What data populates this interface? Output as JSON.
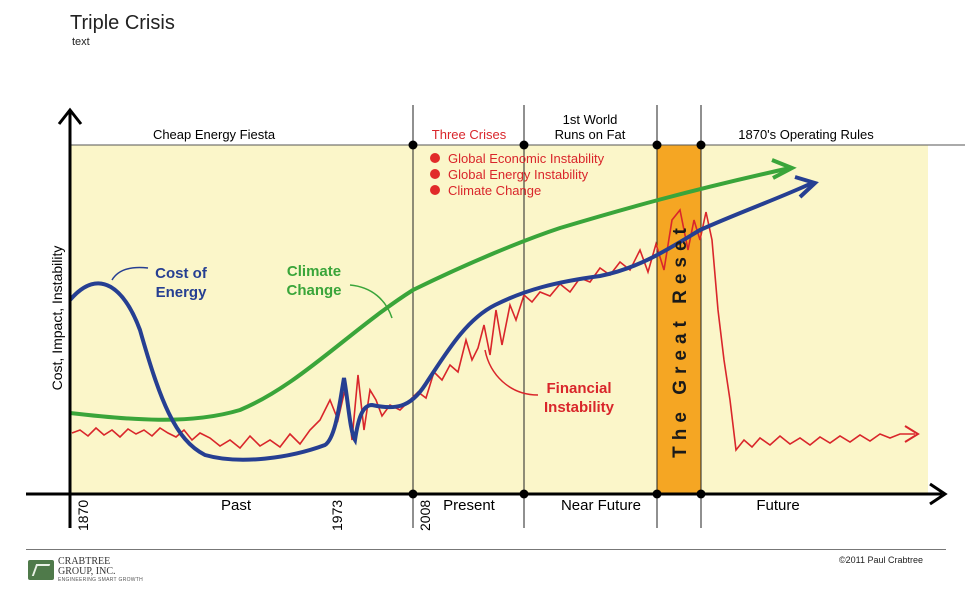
{
  "title": "Triple Crisis",
  "subtitle": "text",
  "colors": {
    "background_band": "#fbf6c9",
    "reset_band": "#f5a623",
    "cost_of_energy": "#263f92",
    "climate_change": "#3aa53a",
    "financial_instability": "#d9262b",
    "axis": "#000000"
  },
  "y_axis_label": "Cost, Impact, Instability",
  "header": {
    "eras": [
      {
        "label": "Cheap Energy Fiesta",
        "color": "#000000"
      },
      {
        "label": "Three Crises",
        "color": "#d9262b"
      },
      {
        "label": "1st World",
        "color": "#000000"
      },
      {
        "label": "Runs on Fat",
        "color": "#000000"
      },
      {
        "label": "1870's Operating Rules",
        "color": "#000000"
      }
    ]
  },
  "crises_list": [
    "Global Economic Instability",
    "Global Energy Instability",
    "Climate Change"
  ],
  "reset_label": "The Great Reset",
  "series_labels": {
    "cost_line1": "Cost of",
    "cost_line2": "Energy",
    "climate_line1": "Climate",
    "climate_line2": "Change",
    "financial_line1": "Financial",
    "financial_line2": "Instability"
  },
  "x_axis": {
    "years": [
      "1870",
      "1973",
      "2008"
    ],
    "periods": [
      "Past",
      "Present",
      "Near Future",
      "Future"
    ]
  },
  "footer": {
    "logo_line1": "CRABTREE",
    "logo_line2": "GROUP, INC.",
    "logo_tag": "ENGINEERING SMART GROWTH",
    "copyright": "©2011 Paul Crabtree"
  }
}
